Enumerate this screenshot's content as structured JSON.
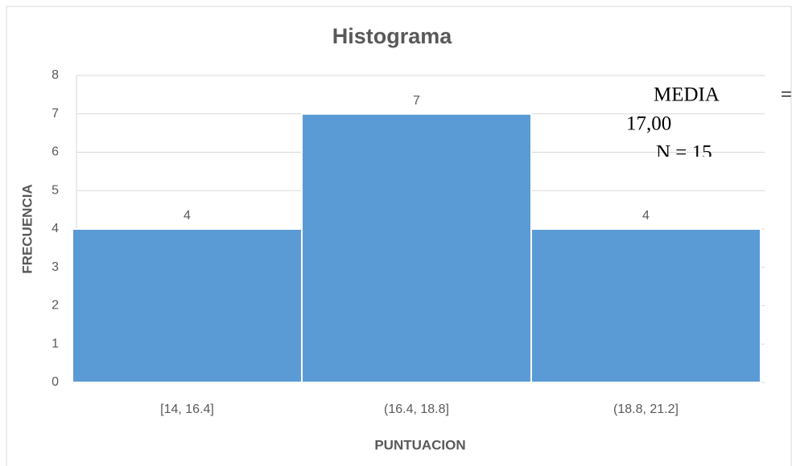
{
  "chart_data": {
    "type": "bar",
    "title": "Histograma",
    "x_label": "PUNTUACION",
    "y_label": "FRECUENCIA",
    "categories": [
      "[14, 16.4]",
      "(16.4, 18.8]",
      "(18.8, 21.2]"
    ],
    "values": [
      4,
      7,
      4
    ],
    "color": "#5b9bd5",
    "ylim": [
      0,
      8
    ],
    "yticks": [
      0,
      1,
      2,
      3,
      4,
      5,
      6,
      7,
      8
    ],
    "grid": true,
    "data_labels": true,
    "annotations": [
      "MEDIA",
      "=",
      "17,00",
      "N = 15"
    ]
  }
}
